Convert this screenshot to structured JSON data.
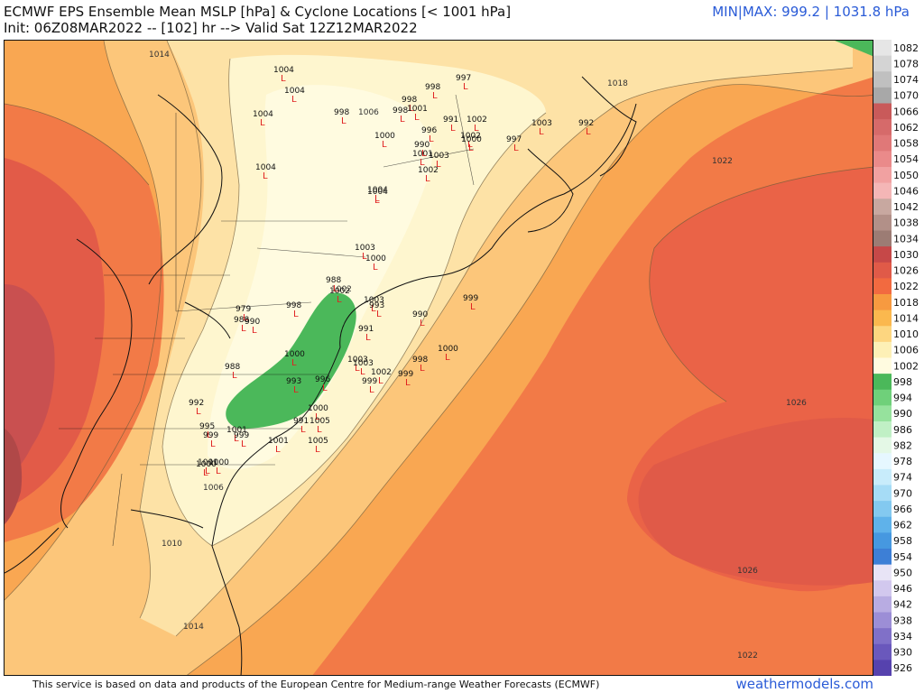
{
  "header": {
    "title": "ECMWF EPS Ensemble Mean MSLP [hPa] & Cyclone Locations [< 1001 hPa]",
    "subtitle": "Init: 06Z08MAR2022 -- [102] hr --> Valid Sat 12Z12MAR2022",
    "minmax": "MIN|MAX: 999.2 | 1031.8 hPa"
  },
  "footer": {
    "attribution": "This service is based on data and products of the European Centre for Medium-range Weather Forecasts (ECMWF)",
    "brand": "weathermodels.com"
  },
  "colors": {
    "water_ocean": "#fdf1c6",
    "low_green": "#4bb85a",
    "band_1006": "#fef6cf",
    "band_1010": "#fde2a6",
    "band_1014": "#fcc67a",
    "band_1018": "#f9a752",
    "band_1022": "#f27a47",
    "band_1026": "#ea6347",
    "band_1030": "#c34a48",
    "cyclone_marker": "#e02020",
    "accent": "#2a5bd7"
  },
  "colorbar": {
    "labels": [
      "1082",
      "1078",
      "1074",
      "1070",
      "1066",
      "1062",
      "1058",
      "1054",
      "1050",
      "1046",
      "1042",
      "1038",
      "1034",
      "1030",
      "1026",
      "1022",
      "1018",
      "1014",
      "1010",
      "1006",
      "1002",
      "998",
      "994",
      "990",
      "986",
      "982",
      "978",
      "974",
      "970",
      "966",
      "962",
      "958",
      "954",
      "950",
      "946",
      "942",
      "938",
      "934",
      "930",
      "926"
    ],
    "colors": [
      "#e6e6e6",
      "#d4d4d4",
      "#c0c0c0",
      "#a8a8a8",
      "#c95a5a",
      "#d66a6a",
      "#e07878",
      "#ea8a8a",
      "#f1a1a1",
      "#f4b6b6",
      "#c8a8a0",
      "#b29088",
      "#9c7c74",
      "#c64848",
      "#e05a48",
      "#f26a40",
      "#f79a40",
      "#fbb84e",
      "#fdd680",
      "#fdf0b6",
      "#fffbe0",
      "#4bb85a",
      "#6fd07a",
      "#96e29d",
      "#c0f0c5",
      "#e4f8e6",
      "#e6f7ff",
      "#c8ecfb",
      "#a6dcf6",
      "#83c9f0",
      "#5fb2ea",
      "#4698e0",
      "#3d7fd6",
      "#e8e4f6",
      "#d2c8ee",
      "#b8ace2",
      "#9c8ed6",
      "#8070c8",
      "#6a58bc",
      "#5642ae"
    ]
  },
  "contour_labels": [
    {
      "text": "1014"
    },
    {
      "text": "1006"
    },
    {
      "text": "1018"
    },
    {
      "text": "1022"
    },
    {
      "text": "1026"
    },
    {
      "text": "1026"
    },
    {
      "text": "1022"
    },
    {
      "text": "1010"
    },
    {
      "text": "1014"
    },
    {
      "text": "1006"
    },
    {
      "text": "1002"
    }
  ],
  "cyclones": [
    {
      "text": "1004"
    },
    {
      "text": "1004"
    },
    {
      "text": "1004"
    },
    {
      "text": "1004"
    },
    {
      "text": "998"
    },
    {
      "text": "998"
    },
    {
      "text": "997"
    },
    {
      "text": "998"
    },
    {
      "text": "998"
    },
    {
      "text": "1001"
    },
    {
      "text": "996"
    },
    {
      "text": "991"
    },
    {
      "text": "1002"
    },
    {
      "text": "1002"
    },
    {
      "text": "1000"
    },
    {
      "text": "1003"
    },
    {
      "text": "992"
    },
    {
      "text": "997"
    },
    {
      "text": "1000"
    },
    {
      "text": "1001"
    },
    {
      "text": "990"
    },
    {
      "text": "1002"
    },
    {
      "text": "1003"
    },
    {
      "text": "1004"
    },
    {
      "text": "1004"
    },
    {
      "text": "1003"
    },
    {
      "text": "1000"
    },
    {
      "text": "988"
    },
    {
      "text": "1002"
    },
    {
      "text": "1003"
    },
    {
      "text": "993"
    },
    {
      "text": "999"
    },
    {
      "text": "991"
    },
    {
      "text": "990"
    },
    {
      "text": "1000"
    },
    {
      "text": "998"
    },
    {
      "text": "979"
    },
    {
      "text": "988"
    },
    {
      "text": "990"
    },
    {
      "text": "998"
    },
    {
      "text": "1000"
    },
    {
      "text": "1003"
    },
    {
      "text": "1003"
    },
    {
      "text": "993"
    },
    {
      "text": "1002"
    },
    {
      "text": "999"
    },
    {
      "text": "999"
    },
    {
      "text": "988"
    },
    {
      "text": "996"
    },
    {
      "text": "1000"
    },
    {
      "text": "1005"
    },
    {
      "text": "991"
    },
    {
      "text": "1005"
    },
    {
      "text": "1001"
    },
    {
      "text": "999"
    },
    {
      "text": "1001"
    },
    {
      "text": "1000"
    },
    {
      "text": "1001"
    },
    {
      "text": "995"
    },
    {
      "text": "992"
    },
    {
      "text": "1000"
    },
    {
      "text": "999"
    }
  ]
}
